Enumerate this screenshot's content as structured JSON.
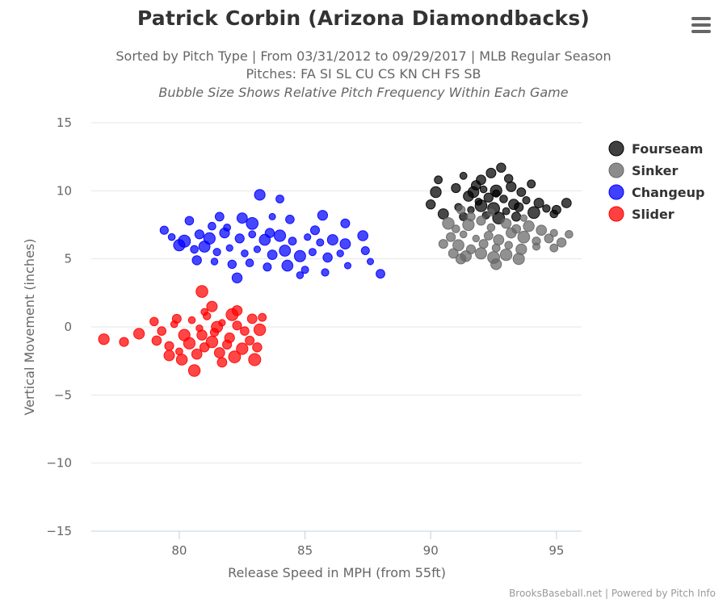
{
  "chart_data": {
    "type": "scatter",
    "title": "Patrick Corbin (Arizona Diamondbacks)",
    "subtitle_lines": [
      "Sorted by Pitch Type | From 03/31/2012 to 09/29/2017 | MLB Regular Season",
      "Pitches: FA SI SL CU CS KN CH FS SB",
      "Bubble Size Shows Relative Pitch Frequency Within Each Game"
    ],
    "xlabel": "Release Speed in MPH (from 55ft)",
    "ylabel": "Vertical Movement (inches)",
    "xlim": [
      76.5,
      96
    ],
    "ylim": [
      -15,
      15
    ],
    "x_ticks": [
      80,
      85,
      90,
      95
    ],
    "y_ticks": [
      15,
      10,
      5,
      0,
      -5,
      -10,
      -15
    ],
    "grid": "horizontal",
    "legend_position": "right",
    "series": [
      {
        "name": "Fourseam",
        "color": "#000000",
        "points": [
          [
            92.8,
            11.7
          ],
          [
            92.4,
            11.3
          ],
          [
            91.3,
            11.1
          ],
          [
            90.3,
            10.8
          ],
          [
            91.0,
            10.2
          ],
          [
            91.8,
            10.4
          ],
          [
            92.1,
            10.1
          ],
          [
            92.6,
            10.0
          ],
          [
            93.2,
            10.3
          ],
          [
            93.6,
            9.9
          ],
          [
            94.0,
            10.5
          ],
          [
            90.2,
            9.9
          ],
          [
            91.5,
            9.6
          ],
          [
            91.9,
            9.2
          ],
          [
            92.3,
            9.5
          ],
          [
            92.9,
            9.4
          ],
          [
            93.3,
            9.0
          ],
          [
            93.8,
            9.3
          ],
          [
            94.3,
            9.1
          ],
          [
            90.0,
            9.0
          ],
          [
            91.1,
            8.8
          ],
          [
            91.6,
            8.6
          ],
          [
            92.0,
            8.9
          ],
          [
            92.5,
            8.7
          ],
          [
            93.0,
            8.5
          ],
          [
            93.5,
            8.8
          ],
          [
            94.1,
            8.4
          ],
          [
            94.6,
            8.7
          ],
          [
            95.0,
            8.6
          ],
          [
            95.4,
            9.1
          ],
          [
            90.5,
            8.3
          ],
          [
            91.3,
            8.1
          ],
          [
            92.2,
            8.2
          ],
          [
            92.7,
            8.0
          ],
          [
            93.4,
            8.1
          ],
          [
            94.9,
            8.3
          ],
          [
            92.0,
            10.8
          ],
          [
            93.1,
            10.9
          ],
          [
            92.6,
            9.8
          ],
          [
            91.7,
            9.9
          ]
        ]
      },
      {
        "name": "Sinker",
        "color": "#666666",
        "points": [
          [
            91.2,
            8.6
          ],
          [
            91.6,
            8.1
          ],
          [
            92.4,
            8.4
          ],
          [
            90.7,
            7.6
          ],
          [
            91.0,
            7.2
          ],
          [
            91.5,
            7.5
          ],
          [
            92.0,
            7.8
          ],
          [
            92.4,
            7.3
          ],
          [
            93.0,
            7.6
          ],
          [
            93.4,
            7.2
          ],
          [
            93.9,
            7.4
          ],
          [
            94.4,
            7.1
          ],
          [
            94.9,
            6.9
          ],
          [
            95.5,
            6.8
          ],
          [
            90.8,
            6.6
          ],
          [
            91.3,
            6.8
          ],
          [
            91.8,
            6.5
          ],
          [
            92.3,
            6.7
          ],
          [
            92.7,
            6.4
          ],
          [
            93.2,
            6.9
          ],
          [
            93.7,
            6.6
          ],
          [
            94.2,
            6.3
          ],
          [
            94.7,
            6.5
          ],
          [
            95.2,
            6.2
          ],
          [
            90.5,
            6.1
          ],
          [
            91.1,
            6.0
          ],
          [
            91.6,
            5.7
          ],
          [
            92.1,
            6.1
          ],
          [
            92.6,
            5.8
          ],
          [
            93.1,
            6.0
          ],
          [
            93.6,
            5.7
          ],
          [
            94.2,
            5.9
          ],
          [
            94.9,
            5.8
          ],
          [
            91.4,
            5.2
          ],
          [
            92.0,
            5.4
          ],
          [
            92.5,
            5.1
          ],
          [
            93.0,
            5.3
          ],
          [
            93.5,
            5.0
          ],
          [
            92.6,
            4.6
          ],
          [
            91.2,
            5.0
          ],
          [
            90.9,
            5.4
          ],
          [
            93.7,
            8.0
          ]
        ]
      },
      {
        "name": "Changeup",
        "color": "#0000ff",
        "points": [
          [
            79.4,
            7.1
          ],
          [
            80.4,
            7.8
          ],
          [
            81.3,
            7.4
          ],
          [
            81.6,
            8.1
          ],
          [
            82.5,
            8.0
          ],
          [
            83.2,
            9.7
          ],
          [
            84.0,
            9.4
          ],
          [
            82.9,
            7.6
          ],
          [
            83.7,
            8.1
          ],
          [
            84.4,
            7.9
          ],
          [
            85.7,
            8.2
          ],
          [
            86.6,
            7.6
          ],
          [
            79.7,
            6.6
          ],
          [
            80.2,
            6.3
          ],
          [
            80.8,
            6.8
          ],
          [
            81.2,
            6.5
          ],
          [
            81.8,
            6.9
          ],
          [
            82.4,
            6.5
          ],
          [
            82.9,
            6.8
          ],
          [
            83.4,
            6.4
          ],
          [
            84.0,
            6.7
          ],
          [
            84.5,
            6.3
          ],
          [
            85.1,
            6.6
          ],
          [
            85.6,
            6.2
          ],
          [
            86.1,
            6.4
          ],
          [
            86.6,
            6.1
          ],
          [
            87.3,
            6.7
          ],
          [
            80.0,
            6.0
          ],
          [
            80.6,
            5.7
          ],
          [
            81.0,
            5.9
          ],
          [
            81.5,
            5.5
          ],
          [
            82.0,
            5.8
          ],
          [
            82.6,
            5.4
          ],
          [
            83.1,
            5.7
          ],
          [
            83.7,
            5.3
          ],
          [
            84.2,
            5.6
          ],
          [
            84.8,
            5.2
          ],
          [
            85.3,
            5.5
          ],
          [
            85.9,
            5.1
          ],
          [
            86.4,
            5.4
          ],
          [
            87.4,
            5.6
          ],
          [
            80.7,
            4.9
          ],
          [
            81.4,
            4.8
          ],
          [
            82.1,
            4.6
          ],
          [
            82.8,
            4.7
          ],
          [
            83.5,
            4.4
          ],
          [
            84.3,
            4.5
          ],
          [
            85.0,
            4.2
          ],
          [
            85.8,
            4.0
          ],
          [
            86.7,
            4.5
          ],
          [
            82.3,
            3.6
          ],
          [
            84.8,
            3.8
          ],
          [
            88.0,
            3.9
          ],
          [
            81.9,
            7.3
          ],
          [
            83.6,
            6.9
          ],
          [
            85.4,
            7.1
          ],
          [
            87.6,
            4.8
          ]
        ]
      },
      {
        "name": "Slider",
        "color": "#ff0000",
        "points": [
          [
            77.0,
            -0.9
          ],
          [
            77.8,
            -1.1
          ],
          [
            78.4,
            -0.5
          ],
          [
            79.0,
            0.4
          ],
          [
            80.9,
            2.6
          ],
          [
            81.3,
            1.5
          ],
          [
            82.3,
            1.2
          ],
          [
            83.3,
            0.7
          ],
          [
            79.3,
            -0.3
          ],
          [
            79.8,
            0.2
          ],
          [
            80.2,
            -0.6
          ],
          [
            80.5,
            0.5
          ],
          [
            80.8,
            -0.1
          ],
          [
            81.1,
            0.8
          ],
          [
            81.4,
            -0.4
          ],
          [
            81.7,
            0.3
          ],
          [
            82.0,
            -0.8
          ],
          [
            82.3,
            0.1
          ],
          [
            82.6,
            -0.3
          ],
          [
            82.9,
            0.6
          ],
          [
            83.2,
            -0.2
          ],
          [
            79.1,
            -1.0
          ],
          [
            79.6,
            -1.4
          ],
          [
            80.0,
            -1.8
          ],
          [
            80.4,
            -1.2
          ],
          [
            80.7,
            -2.0
          ],
          [
            81.0,
            -1.5
          ],
          [
            81.3,
            -1.1
          ],
          [
            81.6,
            -1.9
          ],
          [
            81.9,
            -1.3
          ],
          [
            82.2,
            -2.2
          ],
          [
            82.5,
            -1.6
          ],
          [
            82.8,
            -1.0
          ],
          [
            83.1,
            -1.5
          ],
          [
            79.6,
            -2.1
          ],
          [
            80.1,
            -2.4
          ],
          [
            80.6,
            -3.2
          ],
          [
            81.7,
            -2.6
          ],
          [
            83.0,
            -2.4
          ],
          [
            80.9,
            -0.6
          ],
          [
            81.5,
            0.0
          ],
          [
            79.9,
            0.6
          ],
          [
            81.0,
            1.1
          ],
          [
            82.1,
            0.9
          ]
        ]
      }
    ]
  },
  "credits": "BrooksBaseball.net | Powered by Pitch Info",
  "menu": {
    "icon": "hamburger-menu-icon"
  }
}
